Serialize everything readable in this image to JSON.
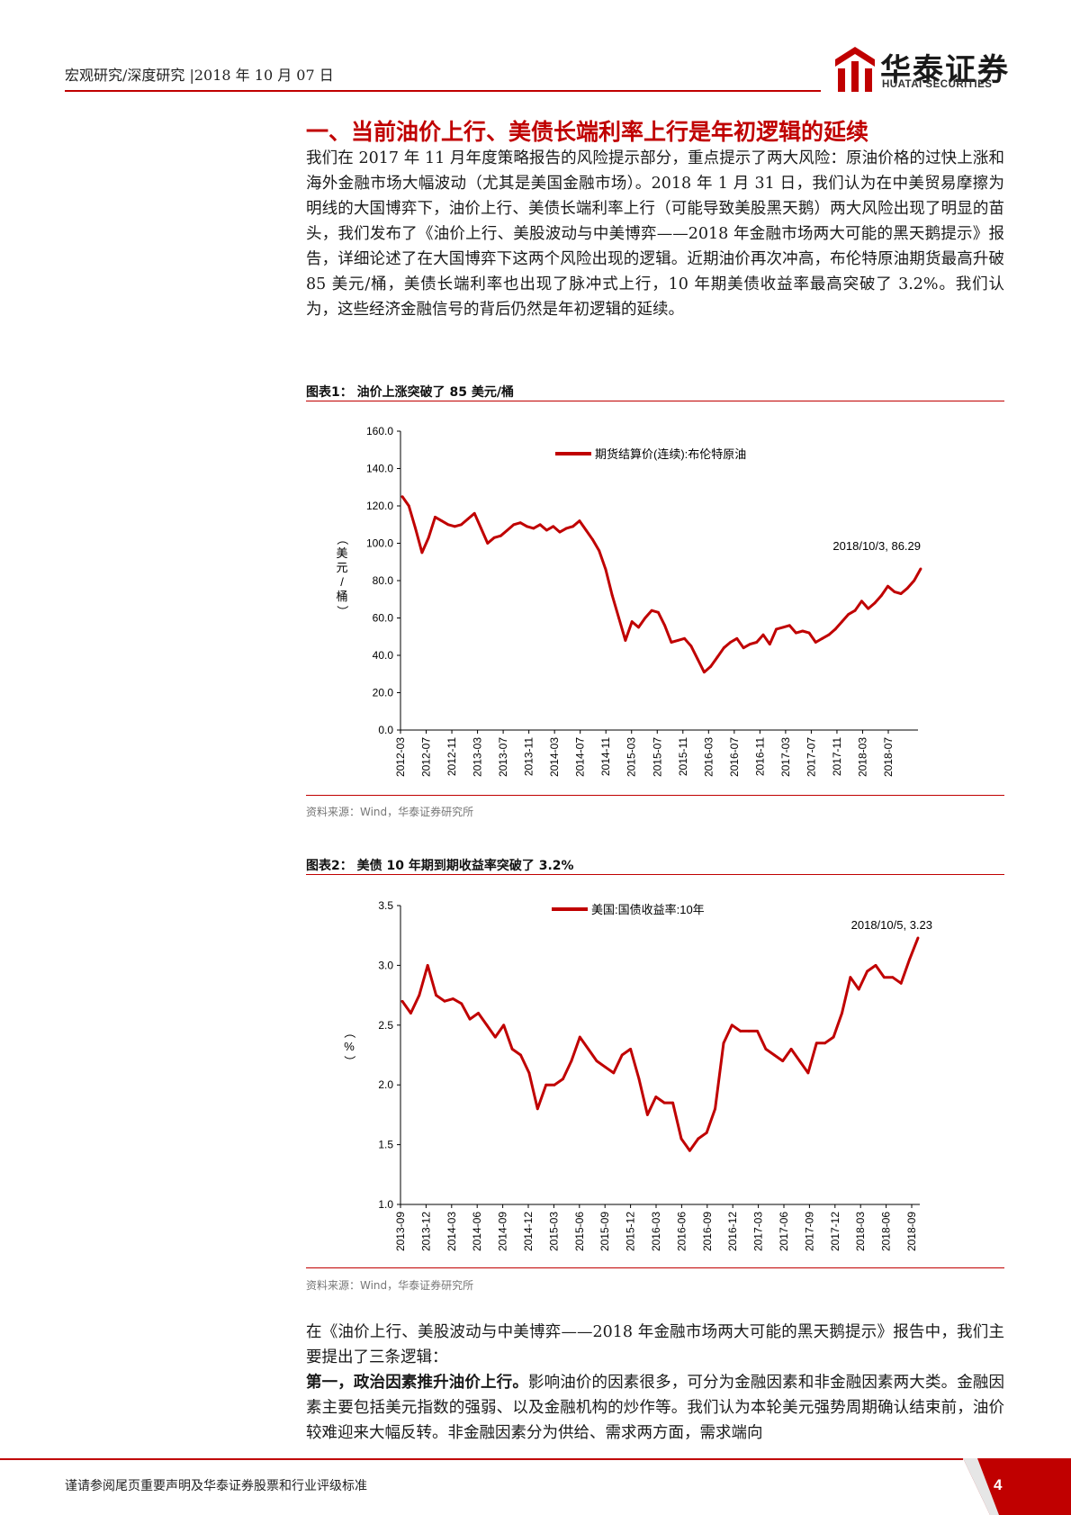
{
  "header": {
    "breadcrumb": "宏观研究/深度研究 |2018 年 10 月 07 日",
    "logo_cn": "华泰证券",
    "logo_en": "HUATAI SECURITIES"
  },
  "section": {
    "title": "一、当前油价上行、美债长端利率上行是年初逻辑的延续",
    "para1": "我们在 2017 年 11 月年度策略报告的风险提示部分，重点提示了两大风险：原油价格的过快上涨和海外金融市场大幅波动（尤其是美国金融市场）。2018 年 1 月 31 日，我们认为在中美贸易摩擦为明线的大国博弈下，油价上行、美债长端利率上行（可能导致美股黑天鹅）两大风险出现了明显的苗头，我们发布了《油价上行、美股波动与中美博弈——2018 年金融市场两大可能的黑天鹅提示》报告，详细论述了在大国博弈下这两个风险出现的逻辑。近期油价再次冲高，布伦特原油期货最高升破 85 美元/桶，美债长端利率也出现了脉冲式上行，10 年期美债收益率最高突破了 3.2%。我们认为，这些经济金融信号的背后仍然是年初逻辑的延续。",
    "para2": "在《油价上行、美股波动与中美博弈——2018 年金融市场两大可能的黑天鹅提示》报告中，我们主要提出了三条逻辑：",
    "para3_lead": "第一，政治因素推升油价上行。",
    "para3_rest": "影响油价的因素很多，可分为金融因素和非金融因素两大类。金融因素主要包括美元指数的强弱、以及金融机构的炒作等。我们认为本轮美元强势周期确认结束前，油价较难迎来大幅反转。非金融因素分为供给、需求两方面，需求端向"
  },
  "chart_data": [
    {
      "type": "line",
      "figure_title": "图表1： 油价上涨突破了 85 美元/桶",
      "source": "资料来源：Wind，华泰证券研究所",
      "legend": "期货结算价(连续):布伦特原油",
      "ylabel": "（美元/桶）",
      "ylim": [
        0,
        160
      ],
      "yticks": [
        "160.0",
        "140.0",
        "120.0",
        "100.0",
        "80.0",
        "60.0",
        "40.0",
        "20.0",
        "0.0"
      ],
      "xticks": [
        "2012-03",
        "2012-07",
        "2012-11",
        "2013-03",
        "2013-07",
        "2013-11",
        "2014-03",
        "2014-07",
        "2014-11",
        "2015-03",
        "2015-07",
        "2015-11",
        "2016-03",
        "2016-07",
        "2016-11",
        "2017-03",
        "2017-07",
        "2017-11",
        "2018-03",
        "2018-07"
      ],
      "annotation": "2018/10/3, 86.29",
      "color": "#c00000",
      "series": [
        {
          "name": "期货结算价(连续):布伦特原油",
          "x": [
            "2012-03",
            "2012-04",
            "2012-05",
            "2012-06",
            "2012-07",
            "2012-08",
            "2012-09",
            "2012-10",
            "2012-11",
            "2012-12",
            "2013-01",
            "2013-02",
            "2013-03",
            "2013-04",
            "2013-05",
            "2013-06",
            "2013-07",
            "2013-08",
            "2013-09",
            "2013-10",
            "2013-11",
            "2013-12",
            "2014-01",
            "2014-02",
            "2014-03",
            "2014-04",
            "2014-05",
            "2014-06",
            "2014-07",
            "2014-08",
            "2014-09",
            "2014-10",
            "2014-11",
            "2014-12",
            "2015-01",
            "2015-02",
            "2015-03",
            "2015-04",
            "2015-05",
            "2015-06",
            "2015-07",
            "2015-08",
            "2015-09",
            "2015-10",
            "2015-11",
            "2015-12",
            "2016-01",
            "2016-02",
            "2016-03",
            "2016-04",
            "2016-05",
            "2016-06",
            "2016-07",
            "2016-08",
            "2016-09",
            "2016-10",
            "2016-11",
            "2016-12",
            "2017-01",
            "2017-02",
            "2017-03",
            "2017-04",
            "2017-05",
            "2017-06",
            "2017-07",
            "2017-08",
            "2017-09",
            "2017-10",
            "2017-11",
            "2017-12",
            "2018-01",
            "2018-02",
            "2018-03",
            "2018-04",
            "2018-05",
            "2018-06",
            "2018-07",
            "2018-08",
            "2018-09",
            "2018-10"
          ],
          "values": [
            125,
            120,
            108,
            95,
            103,
            114,
            112,
            110,
            109,
            110,
            113,
            116,
            108,
            100,
            103,
            104,
            107,
            110,
            111,
            109,
            108,
            110,
            107,
            109,
            106,
            108,
            109,
            112,
            107,
            102,
            96,
            86,
            72,
            60,
            48,
            58,
            55,
            60,
            64,
            63,
            56,
            47,
            48,
            49,
            45,
            38,
            31,
            34,
            39,
            44,
            47,
            49,
            44,
            46,
            47,
            51,
            46,
            54,
            55,
            56,
            52,
            53,
            52,
            47,
            49,
            51,
            54,
            58,
            62,
            64,
            69,
            65,
            68,
            72,
            77,
            74,
            73,
            76,
            80,
            86.29
          ]
        }
      ]
    },
    {
      "type": "line",
      "figure_title": "图表2： 美债 10 年期到期收益率突破了 3.2%",
      "source": "资料来源：Wind，华泰证券研究所",
      "legend": "美国:国债收益率:10年",
      "ylabel": "（%）",
      "ylim": [
        1.0,
        3.5
      ],
      "yticks": [
        "3.5",
        "3.0",
        "2.5",
        "2.0",
        "1.5",
        "1.0"
      ],
      "xticks": [
        "2013-09",
        "2013-12",
        "2014-03",
        "2014-06",
        "2014-09",
        "2014-12",
        "2015-03",
        "2015-06",
        "2015-09",
        "2015-12",
        "2016-03",
        "2016-06",
        "2016-09",
        "2016-12",
        "2017-03",
        "2017-06",
        "2017-09",
        "2017-12",
        "2018-03",
        "2018-06",
        "2018-09"
      ],
      "annotation": "2018/10/5, 3.23",
      "color": "#c00000",
      "series": [
        {
          "name": "美国:国债收益率:10年",
          "x": [
            "2013-09",
            "2013-10",
            "2013-11",
            "2013-12",
            "2014-01",
            "2014-02",
            "2014-03",
            "2014-04",
            "2014-05",
            "2014-06",
            "2014-07",
            "2014-08",
            "2014-09",
            "2014-10",
            "2014-11",
            "2014-12",
            "2015-01",
            "2015-02",
            "2015-03",
            "2015-04",
            "2015-05",
            "2015-06",
            "2015-07",
            "2015-08",
            "2015-09",
            "2015-10",
            "2015-11",
            "2015-12",
            "2016-01",
            "2016-02",
            "2016-03",
            "2016-04",
            "2016-05",
            "2016-06",
            "2016-07",
            "2016-08",
            "2016-09",
            "2016-10",
            "2016-11",
            "2016-12",
            "2017-01",
            "2017-02",
            "2017-03",
            "2017-04",
            "2017-05",
            "2017-06",
            "2017-07",
            "2017-08",
            "2017-09",
            "2017-10",
            "2017-11",
            "2017-12",
            "2018-01",
            "2018-02",
            "2018-03",
            "2018-04",
            "2018-05",
            "2018-06",
            "2018-07",
            "2018-08",
            "2018-09",
            "2018-10"
          ],
          "values": [
            2.7,
            2.6,
            2.75,
            3.0,
            2.75,
            2.7,
            2.72,
            2.68,
            2.55,
            2.6,
            2.5,
            2.4,
            2.5,
            2.3,
            2.25,
            2.1,
            1.8,
            2.0,
            2.0,
            2.05,
            2.2,
            2.4,
            2.3,
            2.2,
            2.15,
            2.1,
            2.25,
            2.3,
            2.05,
            1.75,
            1.9,
            1.85,
            1.85,
            1.55,
            1.45,
            1.55,
            1.6,
            1.8,
            2.35,
            2.5,
            2.45,
            2.45,
            2.45,
            2.3,
            2.25,
            2.2,
            2.3,
            2.2,
            2.1,
            2.35,
            2.35,
            2.4,
            2.6,
            2.9,
            2.8,
            2.95,
            3.0,
            2.9,
            2.9,
            2.85,
            3.05,
            3.23
          ]
        }
      ]
    }
  ],
  "footer": {
    "disclaimer": "谨请参阅尾页重要声明及华泰证券股票和行业评级标准",
    "page": "4"
  }
}
